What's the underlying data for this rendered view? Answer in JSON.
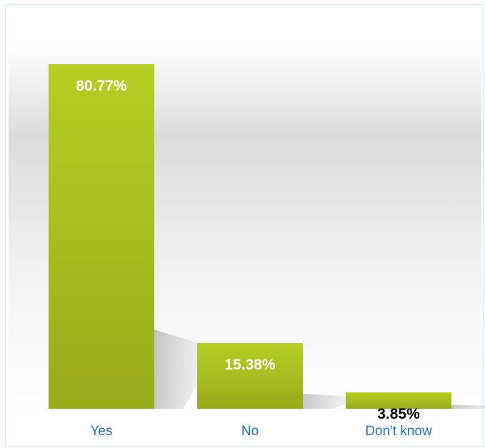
{
  "chart_data": {
    "type": "bar",
    "title": "",
    "xlabel": "",
    "ylabel": "",
    "categories": [
      "Yes",
      "No",
      "Don't know"
    ],
    "values": [
      80.77,
      15.38,
      3.85
    ],
    "data_labels": [
      "80.77%",
      "15.38%",
      "3.85%"
    ],
    "label_colors": [
      "#ffffff",
      "#ffffff",
      "#000000"
    ],
    "ylim": [
      0,
      80.77
    ],
    "grid": false,
    "legend": "none",
    "colors": {
      "bar_top": "#b5cf24",
      "bar_bottom": "#98ab1a",
      "category_label": "#1d6fb7",
      "frame_border": "#cfe6f3"
    }
  }
}
